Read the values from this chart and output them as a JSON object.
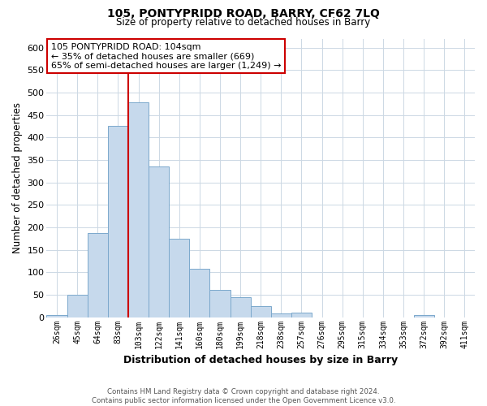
{
  "title_line1": "105, PONTYPRIDD ROAD, BARRY, CF62 7LQ",
  "title_line2": "Size of property relative to detached houses in Barry",
  "xlabel": "Distribution of detached houses by size in Barry",
  "ylabel": "Number of detached properties",
  "bar_labels": [
    "26sqm",
    "45sqm",
    "64sqm",
    "83sqm",
    "103sqm",
    "122sqm",
    "141sqm",
    "160sqm",
    "180sqm",
    "199sqm",
    "218sqm",
    "238sqm",
    "257sqm",
    "276sqm",
    "295sqm",
    "315sqm",
    "334sqm",
    "353sqm",
    "372sqm",
    "392sqm",
    "411sqm"
  ],
  "bar_heights": [
    5,
    50,
    188,
    425,
    478,
    335,
    174,
    107,
    60,
    44,
    25,
    8,
    11,
    0,
    0,
    0,
    0,
    0,
    5,
    0,
    0
  ],
  "bar_color": "#c6d9ec",
  "bar_edge_color": "#7ba8cc",
  "highlight_index": 4,
  "highlight_line_color": "#cc0000",
  "ylim": [
    0,
    620
  ],
  "yticks": [
    0,
    50,
    100,
    150,
    200,
    250,
    300,
    350,
    400,
    450,
    500,
    550,
    600
  ],
  "annotation_title": "105 PONTYPRIDD ROAD: 104sqm",
  "annotation_line1": "← 35% of detached houses are smaller (669)",
  "annotation_line2": "65% of semi-detached houses are larger (1,249) →",
  "annotation_box_color": "#ffffff",
  "annotation_box_edge": "#cc0000",
  "footer_line1": "Contains HM Land Registry data © Crown copyright and database right 2024.",
  "footer_line2": "Contains public sector information licensed under the Open Government Licence v3.0.",
  "background_color": "#ffffff",
  "grid_color": "#ccd8e4"
}
